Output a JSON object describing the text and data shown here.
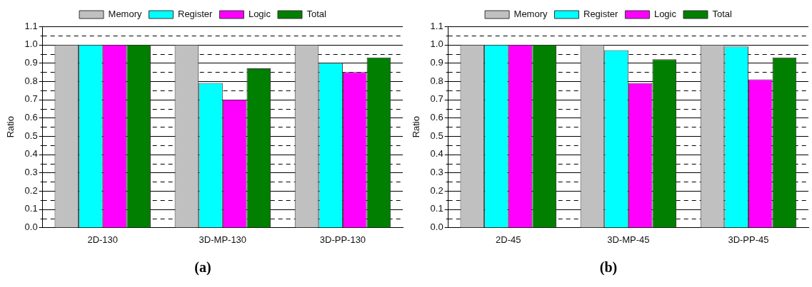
{
  "chart_data": [
    {
      "type": "bar",
      "title": "(a)",
      "ylabel": "Ratio",
      "categories": [
        "2D-130",
        "3D-MP-130",
        "3D-PP-130"
      ],
      "series": [
        {
          "name": "Memory",
          "color": "#c0c0c0",
          "values": [
            1.0,
            1.0,
            1.0
          ]
        },
        {
          "name": "Register",
          "color": "#00ffff",
          "values": [
            1.0,
            0.79,
            0.9
          ]
        },
        {
          "name": "Logic",
          "color": "#ff00ff",
          "values": [
            1.0,
            0.7,
            0.85
          ]
        },
        {
          "name": "Total",
          "color": "#007f00",
          "values": [
            1.0,
            0.87,
            0.93
          ]
        }
      ],
      "ylim": [
        0,
        1.1
      ],
      "yticks": [
        {
          "value": 0,
          "label": "0.0"
        },
        {
          "value": 0.05,
          "label": null
        },
        {
          "value": 0.1,
          "label": "0.1"
        },
        {
          "value": 0.15,
          "label": null
        },
        {
          "value": 0.2,
          "label": "0.2"
        },
        {
          "value": 0.25,
          "label": null
        },
        {
          "value": 0.3,
          "label": "0.3"
        },
        {
          "value": 0.35,
          "label": null
        },
        {
          "value": 0.4,
          "label": "0.4"
        },
        {
          "value": 0.45,
          "label": null
        },
        {
          "value": 0.5,
          "label": "0.5"
        },
        {
          "value": 0.55,
          "label": null
        },
        {
          "value": 0.6,
          "label": "0.6"
        },
        {
          "value": 0.65,
          "label": null
        },
        {
          "value": 0.7,
          "label": "0.7"
        },
        {
          "value": 0.75,
          "label": null
        },
        {
          "value": 0.8,
          "label": "0.8"
        },
        {
          "value": 0.85,
          "label": null
        },
        {
          "value": 0.9,
          "label": "0.9"
        },
        {
          "value": 0.95,
          "label": null
        },
        {
          "value": 1.0,
          "label": "1.0"
        },
        {
          "value": 1.05,
          "label": null
        },
        {
          "value": 1.1,
          "label": "1.1"
        }
      ],
      "grid": "y",
      "legend": "top"
    },
    {
      "type": "bar",
      "title": "(b)",
      "ylabel": "Ratio",
      "categories": [
        "2D-45",
        "3D-MP-45",
        "3D-PP-45"
      ],
      "series": [
        {
          "name": "Memory",
          "color": "#c0c0c0",
          "values": [
            1.0,
            1.0,
            1.0
          ]
        },
        {
          "name": "Register",
          "color": "#00ffff",
          "values": [
            1.0,
            0.97,
            0.99
          ]
        },
        {
          "name": "Logic",
          "color": "#ff00ff",
          "values": [
            1.0,
            0.79,
            0.81
          ]
        },
        {
          "name": "Total",
          "color": "#007f00",
          "values": [
            1.0,
            0.92,
            0.93
          ]
        }
      ],
      "ylim": [
        0,
        1.1
      ],
      "yticks": [
        {
          "value": 0,
          "label": "0.0"
        },
        {
          "value": 0.05,
          "label": null
        },
        {
          "value": 0.1,
          "label": "0.1"
        },
        {
          "value": 0.15,
          "label": null
        },
        {
          "value": 0.2,
          "label": "0.2"
        },
        {
          "value": 0.25,
          "label": null
        },
        {
          "value": 0.3,
          "label": "0.3"
        },
        {
          "value": 0.35,
          "label": null
        },
        {
          "value": 0.4,
          "label": "0.4"
        },
        {
          "value": 0.45,
          "label": null
        },
        {
          "value": 0.5,
          "label": "0.5"
        },
        {
          "value": 0.55,
          "label": null
        },
        {
          "value": 0.6,
          "label": "0.6"
        },
        {
          "value": 0.65,
          "label": null
        },
        {
          "value": 0.7,
          "label": "0.7"
        },
        {
          "value": 0.75,
          "label": null
        },
        {
          "value": 0.8,
          "label": "0.8"
        },
        {
          "value": 0.85,
          "label": null
        },
        {
          "value": 0.9,
          "label": "0.9"
        },
        {
          "value": 0.95,
          "label": null
        },
        {
          "value": 1.0,
          "label": "1.0"
        },
        {
          "value": 1.05,
          "label": null
        },
        {
          "value": 1.1,
          "label": "1.1"
        }
      ],
      "grid": "y",
      "legend": "top"
    }
  ]
}
